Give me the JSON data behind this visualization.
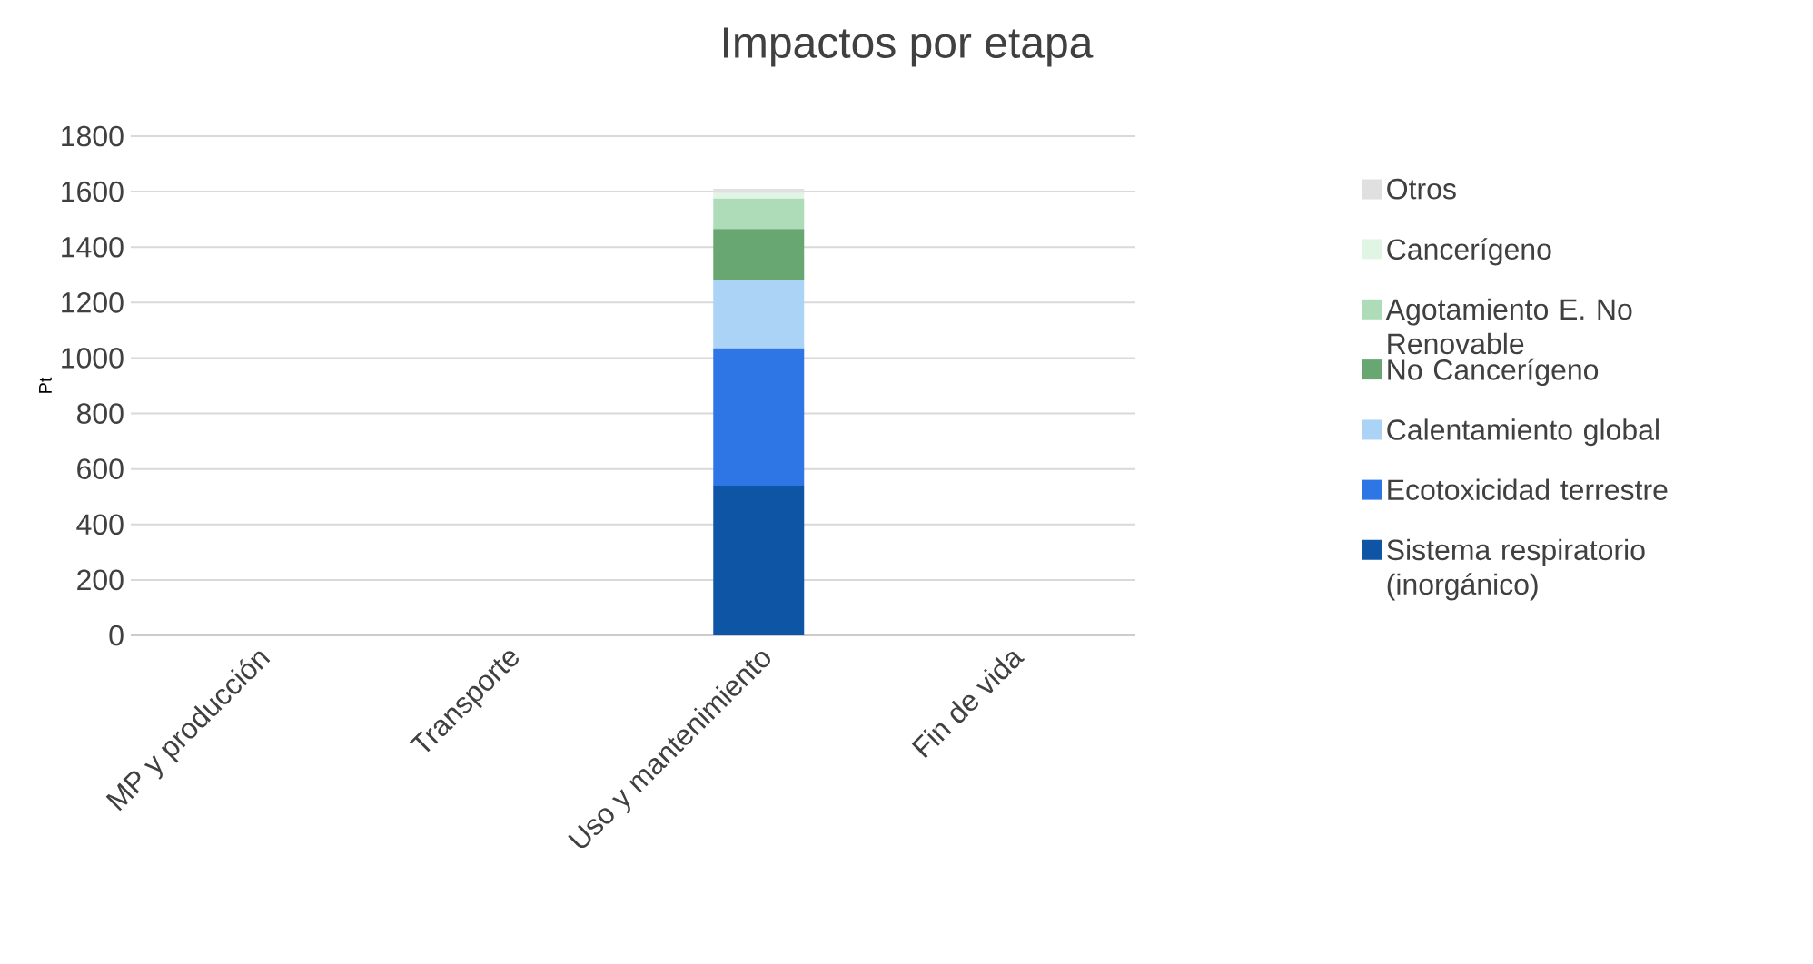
{
  "chart_data": {
    "type": "bar",
    "title": "Impactos por etapa",
    "ylabel": "Pt",
    "stacked": true,
    "categories": [
      "MP y producción",
      "Transporte",
      "Uso y mantenimiento",
      "Fin de vida"
    ],
    "series": [
      {
        "name": "Sistema respiratorio (inorgánico)",
        "color": "#0e56a5",
        "values": [
          0,
          0,
          540,
          0
        ]
      },
      {
        "name": "Ecotoxicidad terrestre",
        "color": "#2e75e6",
        "values": [
          0,
          0,
          495,
          0
        ]
      },
      {
        "name": "Calentamiento global",
        "color": "#aad3f5",
        "values": [
          0,
          0,
          245,
          0
        ]
      },
      {
        "name": "No Cancerígeno",
        "color": "#68a672",
        "values": [
          0,
          0,
          185,
          0
        ]
      },
      {
        "name": "Agotamiento E. No Renovable",
        "color": "#aedcb8",
        "values": [
          0,
          0,
          110,
          0
        ]
      },
      {
        "name": "Cancerígeno",
        "color": "#e0f5e4",
        "values": [
          0,
          0,
          20,
          0
        ]
      },
      {
        "name": "Otros",
        "color": "#e0e0e0",
        "values": [
          0,
          0,
          15,
          0
        ]
      }
    ],
    "ylim": [
      0,
      1800
    ],
    "yticks": [
      0,
      200,
      400,
      600,
      800,
      1000,
      1200,
      1400,
      1600,
      1800
    ],
    "grid": "y",
    "legend": "right"
  }
}
